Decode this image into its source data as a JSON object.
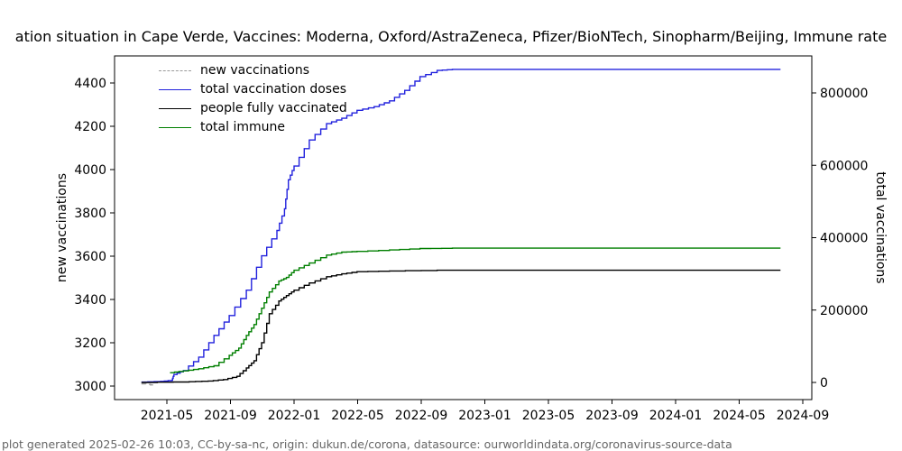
{
  "title": "ation situation in Cape Verde, Vaccines: Moderna, Oxford/AstraZeneca, Pfizer/BioNTech, Sinopharm/Beijing, Immune rate",
  "footer": "plot generated 2025-02-26 10:03, CC-by-sa-nc, origin: dukun.de/corona, datasource: ourworldindata.org/coronavirus-source-data",
  "legend": {
    "items": [
      {
        "label": "new vaccinations",
        "color": "#999999",
        "style": "dashed"
      },
      {
        "label": "total vaccination doses",
        "color": "#2222dd",
        "style": "solid"
      },
      {
        "label": "people fully vaccinated",
        "color": "#000000",
        "style": "solid"
      },
      {
        "label": "total immune",
        "color": "#007f00",
        "style": "solid"
      }
    ]
  },
  "axes": {
    "left": {
      "label": "new vaccinations",
      "ticks": [
        3000,
        3200,
        3400,
        3600,
        3800,
        4000,
        4200,
        4400
      ]
    },
    "right": {
      "label": "total vaccinations",
      "ticks": [
        0,
        200000,
        400000,
        600000,
        800000
      ]
    },
    "x": {
      "ticks": [
        "2021-05",
        "2021-09",
        "2022-01",
        "2022-05",
        "2022-09",
        "2023-01",
        "2023-05",
        "2023-09",
        "2024-01",
        "2024-05",
        "2024-09"
      ]
    }
  },
  "chart_data": {
    "type": "line",
    "title": "Vaccination situation in Cape Verde (title clipped at both image edges)",
    "x_axis": "date, decimal years, data from 2021-03 to 2024-08",
    "left_axis": {
      "label": "new vaccinations",
      "range": [
        2937,
        4525
      ]
    },
    "right_axis": {
      "label": "total vaccinations",
      "range": [
        -47000,
        903000
      ]
    },
    "grid": false,
    "legend_position": "upper-left",
    "series": [
      {
        "name": "new vaccinations",
        "axis": "left",
        "color": "#999999",
        "dash": true,
        "note": "barely visible; tiny dash at series start ~3000",
        "points": [
          [
            2021.2,
            3010
          ],
          [
            2021.27,
            3003
          ]
        ]
      },
      {
        "name": "total vaccination doses",
        "axis": "right",
        "color": "#2222dd",
        "dash": false,
        "points": [
          [
            2021.2,
            1000
          ],
          [
            2021.3,
            3000
          ],
          [
            2021.36,
            6000
          ],
          [
            2021.37,
            22000
          ],
          [
            2021.42,
            33000
          ],
          [
            2021.5,
            70000
          ],
          [
            2021.58,
            130000
          ],
          [
            2021.66,
            185000
          ],
          [
            2021.75,
            255000
          ],
          [
            2021.83,
            350000
          ],
          [
            2021.91,
            420000
          ],
          [
            2021.95,
            480000
          ],
          [
            2021.97,
            560000
          ],
          [
            2022.0,
            598000
          ],
          [
            2022.08,
            670000
          ],
          [
            2022.17,
            715000
          ],
          [
            2022.25,
            730000
          ],
          [
            2022.33,
            752000
          ],
          [
            2022.42,
            762000
          ],
          [
            2022.5,
            778000
          ],
          [
            2022.58,
            807000
          ],
          [
            2022.66,
            845000
          ],
          [
            2022.75,
            862000
          ],
          [
            2022.83,
            865000
          ],
          [
            2024.55,
            865000
          ]
        ]
      },
      {
        "name": "people fully vaccinated",
        "axis": "right",
        "color": "#000000",
        "dash": false,
        "points": [
          [
            2021.2,
            0
          ],
          [
            2021.45,
            2000
          ],
          [
            2021.55,
            4000
          ],
          [
            2021.63,
            8000
          ],
          [
            2021.7,
            17000
          ],
          [
            2021.75,
            40000
          ],
          [
            2021.79,
            60000
          ],
          [
            2021.83,
            110000
          ],
          [
            2021.87,
            190000
          ],
          [
            2021.92,
            225000
          ],
          [
            2021.96,
            240000
          ],
          [
            2022.0,
            255000
          ],
          [
            2022.08,
            275000
          ],
          [
            2022.17,
            292000
          ],
          [
            2022.25,
            300000
          ],
          [
            2022.33,
            306000
          ],
          [
            2022.5,
            308000
          ],
          [
            2022.75,
            310000
          ],
          [
            2024.55,
            310000
          ]
        ]
      },
      {
        "name": "total immune",
        "axis": "right",
        "color": "#007f00",
        "dash": false,
        "points": [
          [
            2021.35,
            27000
          ],
          [
            2021.42,
            32000
          ],
          [
            2021.5,
            38000
          ],
          [
            2021.58,
            46000
          ],
          [
            2021.66,
            75000
          ],
          [
            2021.71,
            95000
          ],
          [
            2021.75,
            130000
          ],
          [
            2021.79,
            160000
          ],
          [
            2021.83,
            205000
          ],
          [
            2021.87,
            250000
          ],
          [
            2021.92,
            280000
          ],
          [
            2021.96,
            290000
          ],
          [
            2022.0,
            310000
          ],
          [
            2022.08,
            330000
          ],
          [
            2022.17,
            352000
          ],
          [
            2022.25,
            360000
          ],
          [
            2022.33,
            362000
          ],
          [
            2022.5,
            366000
          ],
          [
            2022.66,
            370000
          ],
          [
            2022.83,
            371000
          ],
          [
            2024.55,
            371000
          ]
        ]
      }
    ]
  }
}
